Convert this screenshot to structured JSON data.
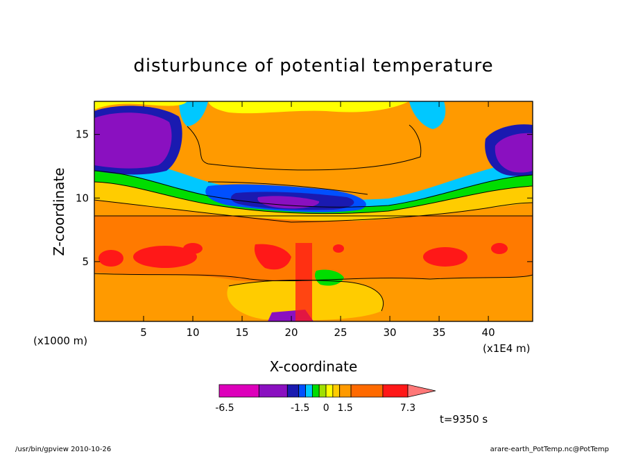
{
  "chart_data": {
    "type": "heatmap",
    "title": "disturbunce of potential temperature",
    "xlabel": "X-coordinate",
    "ylabel": "Z-coordinate",
    "x_unit": "(x1E4 m)",
    "y_unit": "(x1000 m)",
    "x_ticks": [
      5,
      10,
      15,
      20,
      25,
      30,
      35,
      40
    ],
    "y_ticks": [
      5,
      10,
      15
    ],
    "xlim": [
      0,
      44.5
    ],
    "ylim": [
      0.3,
      17.6
    ],
    "colorbar": {
      "labels": [
        "-6.5",
        "-1.5",
        "0",
        "1.5",
        "7.3"
      ],
      "levels": [
        -6.5,
        -4.5,
        -2.5,
        -1.5,
        -1.0,
        -0.5,
        0,
        0.5,
        1.0,
        1.5,
        2.5,
        4.5,
        7.3
      ],
      "colors": [
        "#dd00bb",
        "#8a10c0",
        "#1a1ab0",
        "#0050ff",
        "#00c8ff",
        "#00dd00",
        "#a0e000",
        "#ffff00",
        "#ffcc00",
        "#ff9a00",
        "#ff6a00",
        "#ff1818",
        "#ff7878"
      ]
    },
    "time_label": "t=9350 s"
  },
  "footer": {
    "left": "/usr/bin/gpview   2010-10-26",
    "right": "arare-earth_PotTemp.nc@PotTemp"
  }
}
